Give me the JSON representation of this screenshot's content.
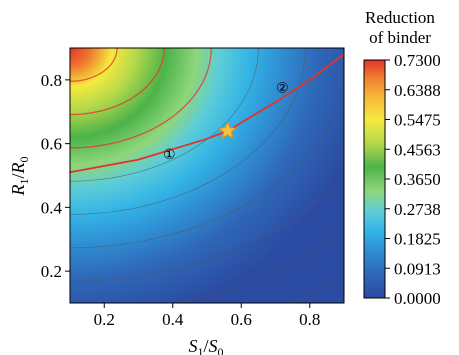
{
  "chart_data": {
    "type": "heatmap",
    "xlabel": {
      "main": "S",
      "sub1": "1",
      "slash": "/",
      "main2": "S",
      "sub2": "0"
    },
    "ylabel": {
      "main": "R",
      "sub1": "1",
      "slash": "/",
      "main2": "R",
      "sub2": "0"
    },
    "xlim": [
      0.1,
      0.9
    ],
    "ylim": [
      0.1,
      0.9
    ],
    "xticks": [
      0.2,
      0.4,
      0.6,
      0.8
    ],
    "yticks": [
      0.2,
      0.4,
      0.6,
      0.8
    ],
    "xtick_labels": [
      "0.2",
      "0.4",
      "0.6",
      "0.8"
    ],
    "ytick_labels": [
      "0.2",
      "0.4",
      "0.6",
      "0.8"
    ],
    "colorbar": {
      "title_line1": "Reduction",
      "title_line2": "of binder",
      "min": 0.0,
      "max": 0.73,
      "ticks": [
        "0.7300",
        "0.6388",
        "0.5475",
        "0.4563",
        "0.3650",
        "0.2738",
        "0.1825",
        "0.0913",
        "0.0000"
      ],
      "colors": [
        "#2b4aa1",
        "#2f68b8",
        "#2f8fd3",
        "#33b3e6",
        "#5ccdd8",
        "#8fd67a",
        "#4cb34a",
        "#b5d84a",
        "#f5ea3f",
        "#f6b43a",
        "#f07a2e",
        "#e2332b"
      ]
    },
    "boundary_curve": {
      "x": [
        0.1,
        0.3,
        0.5,
        0.56,
        0.7,
        0.8,
        0.9
      ],
      "y": [
        0.51,
        0.55,
        0.615,
        0.64,
        0.73,
        0.8,
        0.88
      ]
    },
    "star": {
      "x": 0.56,
      "y": 0.64
    },
    "region_markers": [
      {
        "label": "①",
        "x": 0.39,
        "y": 0.57
      },
      {
        "label": "②",
        "x": 0.72,
        "y": 0.78
      }
    ],
    "grid": false
  }
}
